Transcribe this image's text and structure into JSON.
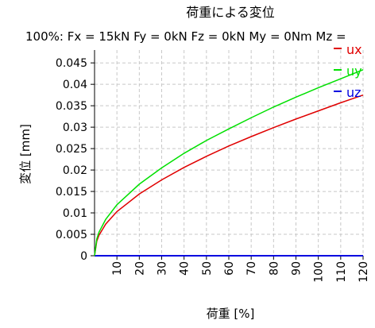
{
  "chart_data": {
    "type": "line",
    "title": "荷重による変位",
    "subtitle": "100%: Fx = 15kN Fy = 0kN Fz = 0kN My = 0Nm Mz =",
    "xlabel": "荷重 [%]",
    "ylabel": "変位 [mm]",
    "xlim": [
      0,
      120
    ],
    "ylim": [
      0,
      0.048
    ],
    "xticks": [
      10,
      20,
      30,
      40,
      50,
      60,
      70,
      80,
      90,
      100,
      110,
      120
    ],
    "yticks": [
      0,
      0.005,
      0.01,
      0.015,
      0.02,
      0.025,
      0.03,
      0.035,
      0.04,
      0.045
    ],
    "ytick_labels": [
      "0",
      "0.005",
      "0.01",
      "0.015",
      "0.02",
      "0.025",
      "0.03",
      "0.035",
      "0.04",
      "0.045"
    ],
    "grid": true,
    "legend_position": "top-right",
    "x": [
      0,
      1,
      2,
      5,
      10,
      20,
      30,
      40,
      50,
      60,
      70,
      80,
      90,
      100,
      110,
      120
    ],
    "series": [
      {
        "name": "ux",
        "color": "#e00000",
        "values": [
          0,
          0.0034,
          0.0048,
          0.0074,
          0.0103,
          0.0144,
          0.0177,
          0.0206,
          0.0232,
          0.0256,
          0.0278,
          0.0299,
          0.0319,
          0.0338,
          0.0357,
          0.0375
        ]
      },
      {
        "name": "uy",
        "color": "#00e000",
        "values": [
          0,
          0.0039,
          0.0055,
          0.0085,
          0.0119,
          0.0167,
          0.0205,
          0.0239,
          0.0269,
          0.0296,
          0.0322,
          0.0347,
          0.037,
          0.0392,
          0.0413,
          0.0434
        ]
      },
      {
        "name": "uz",
        "color": "#0000e0",
        "values": [
          0,
          0,
          0,
          0,
          0,
          0,
          0,
          0,
          0,
          0,
          0,
          0,
          0,
          0,
          0,
          0
        ]
      }
    ]
  }
}
